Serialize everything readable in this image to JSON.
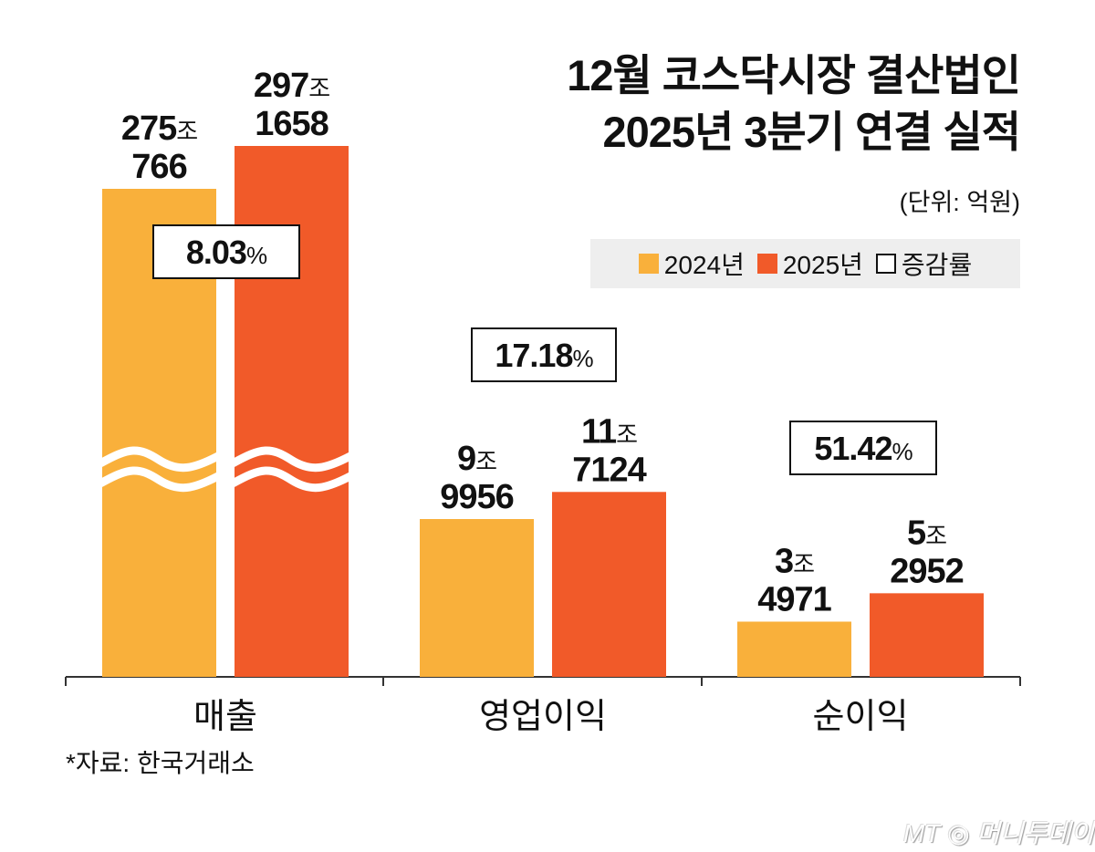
{
  "chart_data": {
    "type": "bar",
    "title_lines": [
      "12월 코스닥시장 결산법인",
      "2025년 3분기 연결 실적"
    ],
    "unit": "(단위: 억원)",
    "categories": [
      "매출",
      "영업이익",
      "순이익"
    ],
    "broken_axis_categories": [
      "매출"
    ],
    "series": [
      {
        "name": "2024년",
        "color": "#f9b03b",
        "values": [
          2750766,
          99956,
          34971
        ],
        "labels": [
          [
            "275",
            "조",
            "766"
          ],
          [
            "9",
            "조",
            "9956"
          ],
          [
            "3",
            "조",
            "4971"
          ]
        ]
      },
      {
        "name": "2025년",
        "color": "#f15a29",
        "values": [
          2971658,
          117124,
          52952
        ],
        "labels": [
          [
            "297",
            "조",
            "1658"
          ],
          [
            "11",
            "조",
            "7124"
          ],
          [
            "5",
            "조",
            "2952"
          ]
        ]
      }
    ],
    "growth": {
      "name": "증감률",
      "values": [
        "8.03",
        "17.18",
        "51.42"
      ],
      "suffix": "%"
    },
    "legend_placement": "top-right",
    "grid": false
  },
  "source": "*자료: 한국거래소",
  "logo": "MT 머니투데이"
}
